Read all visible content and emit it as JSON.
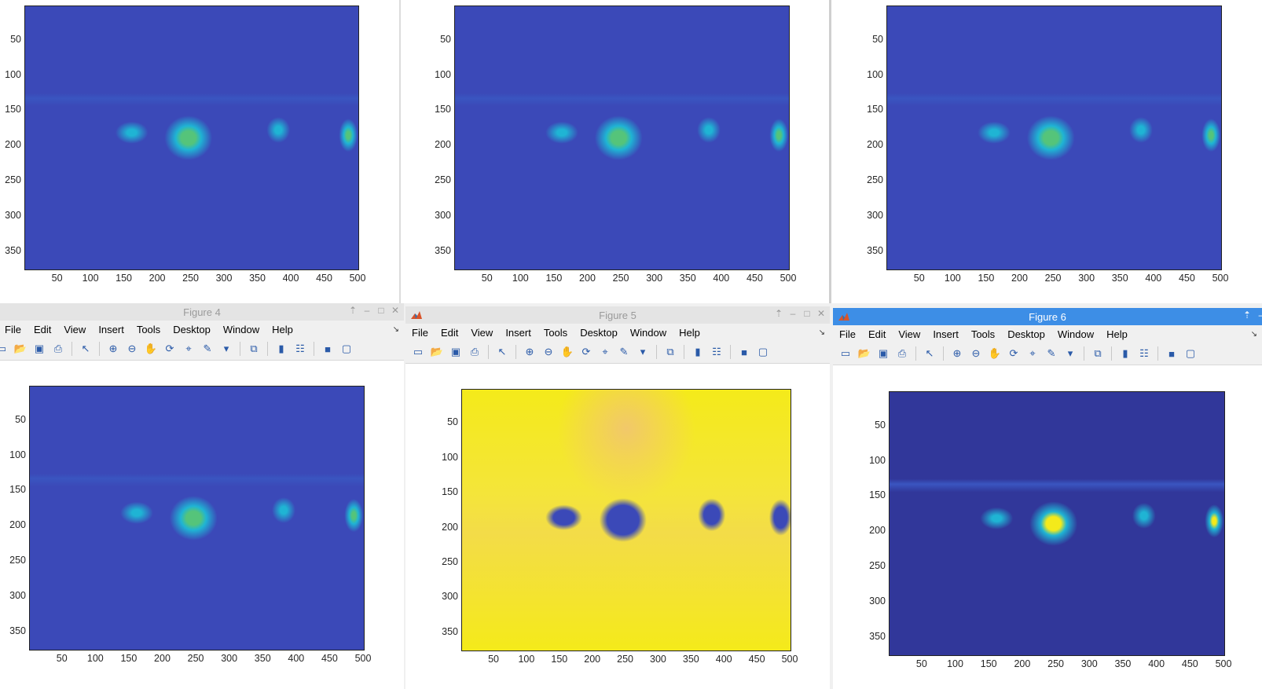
{
  "menu": [
    "File",
    "Edit",
    "View",
    "Insert",
    "Tools",
    "Desktop",
    "Window",
    "Help"
  ],
  "y_ticks": [
    "50",
    "100",
    "150",
    "200",
    "250",
    "300",
    "350"
  ],
  "x_ticks": [
    "50",
    "100",
    "150",
    "200",
    "250",
    "300",
    "350",
    "400",
    "450",
    "500"
  ],
  "figures": [
    {
      "title": "",
      "colormap": "parula-low",
      "window_state": "partial-top"
    },
    {
      "title": "",
      "colormap": "parula-low",
      "window_state": "partial-top"
    },
    {
      "title": "",
      "colormap": "parula-low",
      "window_state": "partial-top"
    },
    {
      "title": "Figure 4",
      "colormap": "parula-low",
      "window_state": "inactive"
    },
    {
      "title": "Figure 5",
      "colormap": "parula-high",
      "window_state": "inactive"
    },
    {
      "title": "Figure 6",
      "colormap": "parula-mid",
      "window_state": "active"
    }
  ],
  "colors": {
    "parula_blue": "#3b49b8",
    "parula_dark": "#31379a",
    "parula_cyan": "#1fb4d4",
    "parula_green": "#55c47a",
    "parula_yellow": "#f4ea1a",
    "active_title": "#3d8ee6"
  },
  "chart_data": [
    {
      "type": "heatmap",
      "title": "",
      "xlim": [
        1,
        500
      ],
      "ylim": [
        1,
        375
      ],
      "y_reversed": true,
      "xticks": [
        50,
        100,
        150,
        200,
        250,
        300,
        350,
        400,
        450,
        500
      ],
      "yticks": [
        50,
        100,
        150,
        200,
        250,
        300,
        350
      ]
    },
    {
      "type": "heatmap",
      "title": "",
      "xlim": [
        1,
        500
      ],
      "ylim": [
        1,
        375
      ],
      "y_reversed": true,
      "xticks": [
        50,
        100,
        150,
        200,
        250,
        300,
        350,
        400,
        450,
        500
      ],
      "yticks": [
        50,
        100,
        150,
        200,
        250,
        300,
        350
      ]
    },
    {
      "type": "heatmap",
      "title": "",
      "xlim": [
        1,
        500
      ],
      "ylim": [
        1,
        375
      ],
      "y_reversed": true,
      "xticks": [
        50,
        100,
        150,
        200,
        250,
        300,
        350,
        400,
        450,
        500
      ],
      "yticks": [
        50,
        100,
        150,
        200,
        250,
        300,
        350
      ]
    },
    {
      "type": "heatmap",
      "title": "",
      "xlim": [
        1,
        500
      ],
      "ylim": [
        1,
        375
      ],
      "y_reversed": true,
      "xticks": [
        50,
        100,
        150,
        200,
        250,
        300,
        350,
        400,
        450,
        500
      ],
      "yticks": [
        50,
        100,
        150,
        200,
        250,
        300,
        350
      ]
    },
    {
      "type": "heatmap",
      "title": "",
      "xlim": [
        1,
        500
      ],
      "ylim": [
        1,
        375
      ],
      "y_reversed": true,
      "xticks": [
        50,
        100,
        150,
        200,
        250,
        300,
        350,
        400,
        450,
        500
      ],
      "yticks": [
        50,
        100,
        150,
        200,
        250,
        300,
        350
      ]
    },
    {
      "type": "heatmap",
      "title": "",
      "xlim": [
        1,
        500
      ],
      "ylim": [
        1,
        375
      ],
      "y_reversed": true,
      "xticks": [
        50,
        100,
        150,
        200,
        250,
        300,
        350,
        400,
        450,
        500
      ],
      "yticks": [
        50,
        100,
        150,
        200,
        250,
        300,
        350
      ]
    }
  ]
}
